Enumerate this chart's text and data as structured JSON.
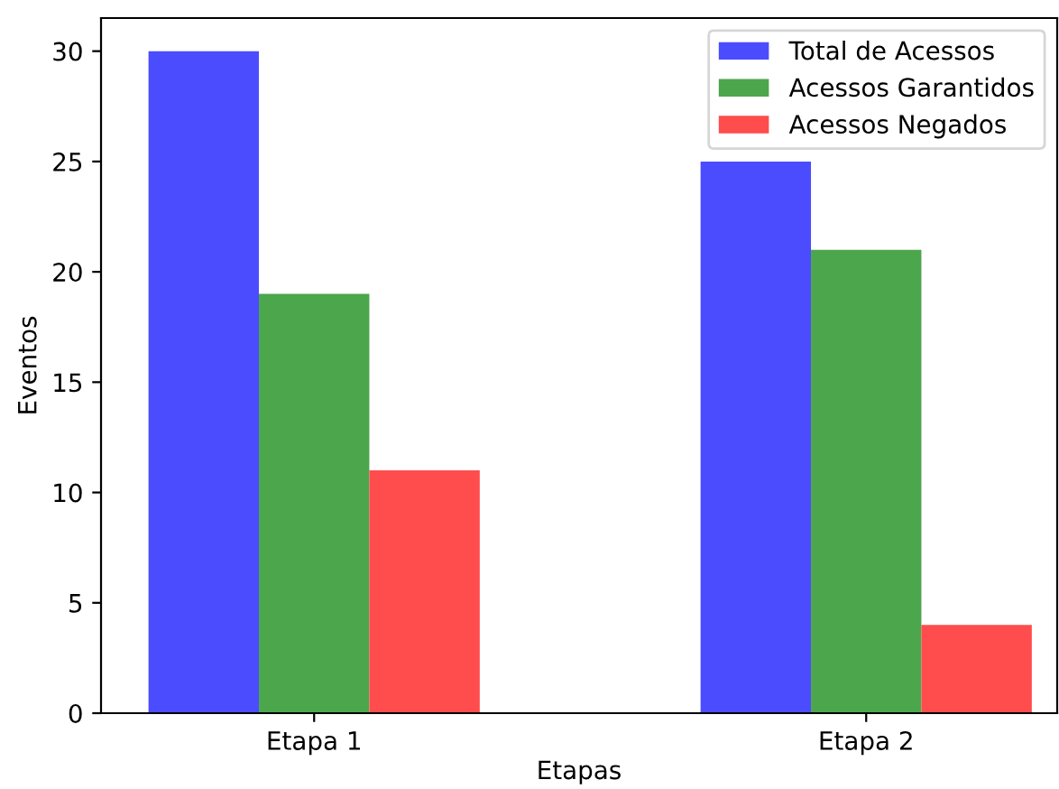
{
  "chart_data": {
    "type": "bar",
    "xlabel": "Etapas",
    "ylabel": "Eventos",
    "categories": [
      "Etapa 1",
      "Etapa 2"
    ],
    "series": [
      {
        "name": "Total de Acessos",
        "color": "#4c4cff",
        "values": [
          30,
          25
        ]
      },
      {
        "name": "Acessos Garantidos",
        "color": "#4ca64c",
        "values": [
          19,
          21
        ]
      },
      {
        "name": "Acessos Negados",
        "color": "#ff4c4c",
        "values": [
          11,
          4
        ]
      }
    ],
    "ylim": [
      0,
      31.5
    ],
    "yticks": [
      0,
      5,
      10,
      15,
      20,
      25,
      30
    ],
    "legend": "top right",
    "grid": false
  }
}
